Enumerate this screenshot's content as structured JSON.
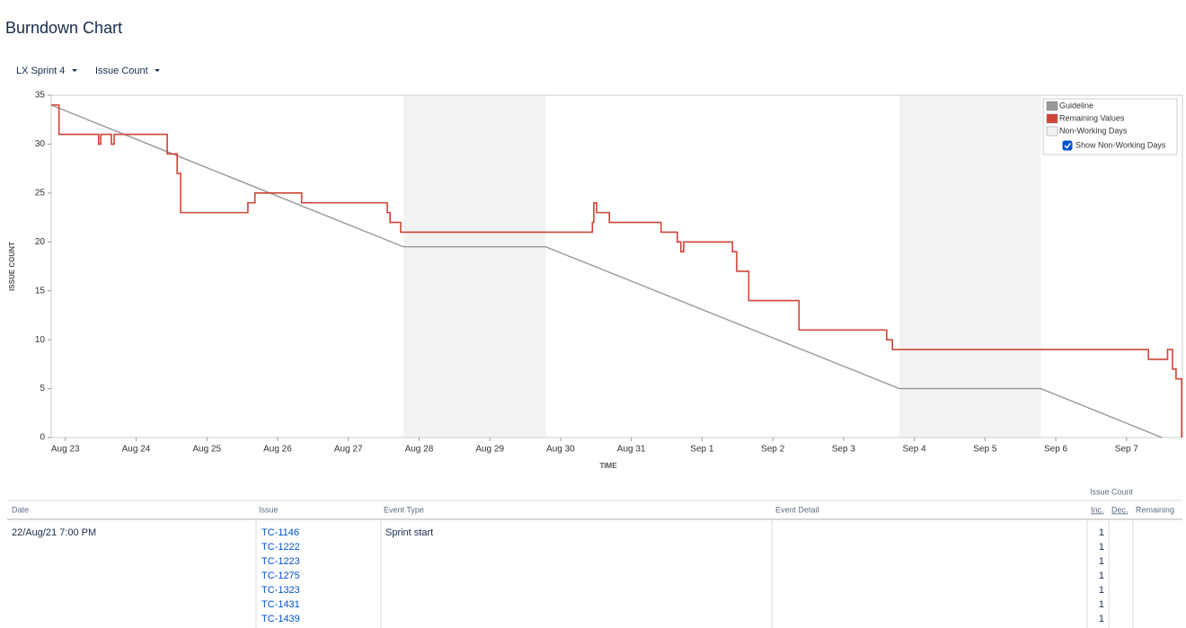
{
  "header": {
    "title": "Burndown Chart",
    "sprint": "LX Sprint 4",
    "measure": "Issue Count"
  },
  "chart_data": {
    "type": "line",
    "ylabel": "ISSUE COUNT",
    "xlabel": "TIME",
    "ylim": [
      0,
      35
    ],
    "yticks": [
      0,
      5,
      10,
      15,
      20,
      25,
      30,
      35
    ],
    "xlim": [
      -0.2,
      15.79
    ],
    "xticks": [
      {
        "value": 0,
        "label": "Aug 23"
      },
      {
        "value": 1,
        "label": "Aug 24"
      },
      {
        "value": 2,
        "label": "Aug 25"
      },
      {
        "value": 3,
        "label": "Aug 26"
      },
      {
        "value": 4,
        "label": "Aug 27"
      },
      {
        "value": 5,
        "label": "Aug 28"
      },
      {
        "value": 6,
        "label": "Aug 29"
      },
      {
        "value": 7,
        "label": "Aug 30"
      },
      {
        "value": 8,
        "label": "Aug 31"
      },
      {
        "value": 9,
        "label": "Sep 1"
      },
      {
        "value": 10,
        "label": "Sep 2"
      },
      {
        "value": 11,
        "label": "Sep 3"
      },
      {
        "value": 12,
        "label": "Sep 4"
      },
      {
        "value": 13,
        "label": "Sep 5"
      },
      {
        "value": 14,
        "label": "Sep 6"
      },
      {
        "value": 15,
        "label": "Sep 7"
      }
    ],
    "series": [
      {
        "name": "Guideline",
        "color": "#999999",
        "step": false,
        "x": [
          -0.2,
          4.78,
          6.79,
          11.79,
          13.79,
          15.5
        ],
        "values": [
          34,
          19.5,
          19.5,
          5,
          5,
          0
        ]
      },
      {
        "name": "Remaining Values",
        "color": "#d04437",
        "step": true,
        "x": [
          -0.2,
          -0.09,
          0.47,
          0.5,
          0.65,
          0.69,
          1.44,
          1.58,
          1.63,
          2.58,
          2.68,
          3.34,
          4.55,
          4.59,
          4.74,
          7.45,
          7.47,
          7.51,
          7.69,
          8.42,
          8.65,
          8.7,
          8.74,
          9.43,
          9.49,
          9.66,
          10.37,
          11.61,
          11.69,
          15.31,
          15.58,
          15.65,
          15.7,
          15.78
        ],
        "values": [
          34,
          31,
          30,
          31,
          30,
          31,
          29,
          27,
          23,
          24,
          25,
          24,
          23,
          22,
          21,
          22,
          24,
          23,
          22,
          21,
          20,
          19,
          20,
          19,
          17,
          14,
          11,
          10,
          9,
          8,
          9,
          7,
          6,
          0
        ]
      }
    ],
    "non_working": {
      "name": "Non-Working Days",
      "color": "#f2f2f2",
      "ranges": [
        [
          4.78,
          6.79
        ],
        [
          11.79,
          13.79
        ]
      ],
      "toggle": "Show Non-Working Days",
      "shown": true
    },
    "legend": "top-right"
  },
  "table": {
    "group": "Issue Count",
    "columns": [
      "Date",
      "Issue",
      "Event Type",
      "Event Detail",
      "Inc.",
      "Dec.",
      "Remaining"
    ],
    "rows": [
      {
        "date": "22/Aug/21 7:00 PM",
        "event": "Sprint start",
        "issues": [
          "TC-1146",
          "TC-1222",
          "TC-1223",
          "TC-1275",
          "TC-1323",
          "TC-1431",
          "TC-1439"
        ],
        "inc": [
          1,
          1,
          1,
          1,
          1,
          1,
          1
        ]
      }
    ]
  }
}
